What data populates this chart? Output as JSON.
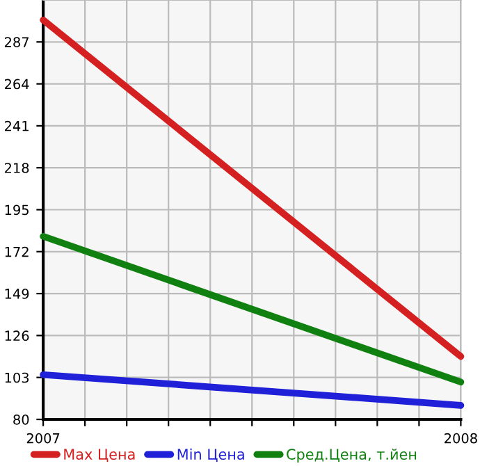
{
  "chart_data": {
    "type": "line",
    "x": [
      2007,
      2008
    ],
    "series": [
      {
        "name": "Max Цена",
        "color": "#d42020",
        "values": [
          299,
          114.5
        ]
      },
      {
        "name": "Min Цена",
        "color": "#2020d8",
        "values": [
          104.5,
          87.7
        ]
      },
      {
        "name": "Сред.Цена, т.йен",
        "color": "#108010",
        "values": [
          180.4,
          100.5
        ]
      }
    ],
    "xlim": [
      2007,
      2008
    ],
    "ylim": [
      80,
      310
    ],
    "xticks": [
      2007,
      {
        "value": 2007.1,
        "label": null
      },
      {
        "value": 2007.2,
        "label": null
      },
      {
        "value": 2007.3,
        "label": null
      },
      {
        "value": 2007.4,
        "label": null
      },
      {
        "value": 2007.5,
        "label": null
      },
      {
        "value": 2007.6,
        "label": null
      },
      {
        "value": 2007.7,
        "label": null
      },
      {
        "value": 2007.8,
        "label": null
      },
      {
        "value": 2007.9,
        "label": null
      },
      2008
    ],
    "yticks": [
      80,
      103,
      126,
      149,
      172,
      195,
      218,
      241,
      264,
      287
    ],
    "grid": true,
    "legend": "bottom",
    "marker": "none",
    "line_style": "solid"
  }
}
